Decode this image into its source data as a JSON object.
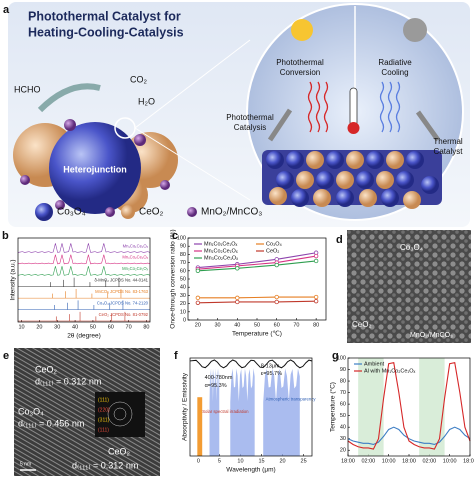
{
  "panel_a": {
    "label": "a",
    "title": [
      "Photothermal Catalyst for",
      "Heating-Cooling-Catalysis"
    ],
    "hcho": "HCHO",
    "co2": "CO₂",
    "h2o": "H₂O",
    "heterojunction": "Heterojunction",
    "photothermal_conversion": [
      "Photothermal",
      "Conversion"
    ],
    "radiative_cooling": [
      "Radiative",
      "Cooling"
    ],
    "photothermal_catalysis": [
      "Photothermal",
      "Catalysis"
    ],
    "thermal_catalyst": [
      "Thermal",
      "Catalyst"
    ],
    "legend": [
      "Co₃O₄",
      "CeO₂",
      "MnO₂/MnCO₃"
    ]
  },
  "chart_data": [
    {
      "type": "xrd",
      "panel_label": "b",
      "x_label": "2θ (degree)",
      "y_label": "Intensity (a.u.)",
      "xlim": [
        8,
        82
      ],
      "xticks": [
        10,
        20,
        30,
        40,
        50,
        60,
        70,
        80
      ],
      "traces": [
        "Mn₁Co₁Ce₁Oₓ",
        "Mn₁Co₂Ce₁Oₓ",
        "Mn₃Co₂Ce₁Oₓ",
        "δ-MnO₂ JCPDS No. 44-0141",
        "MnCO₃ JCPDS No. 83-1763",
        "Co₃O₄ JCPDS No. 74-2120",
        "CeO₂ JCPDS No. 81-0792"
      ],
      "colors": [
        "#8e44ad",
        "#d63384",
        "#2e9e4f",
        "#333333",
        "#e67e22",
        "#2f5fb3",
        "#c0392b"
      ]
    },
    {
      "type": "line",
      "panel_label": "c",
      "x_label": "Temperature (℃)",
      "y_label": "Once-through conversion ratio (%)",
      "x": [
        20,
        40,
        60,
        80
      ],
      "xlim": [
        15,
        85
      ],
      "xticks": [
        20,
        30,
        40,
        50,
        60,
        70,
        80
      ],
      "ylim": [
        0,
        100
      ],
      "yticks": [
        0,
        10,
        20,
        30,
        40,
        50,
        60,
        70,
        80,
        90,
        100
      ],
      "markers": true,
      "legend": "upper-left",
      "series": [
        {
          "name": "Mn₁Co₁Ce₁Oₓ",
          "color": "#8e44ad",
          "values": [
            64,
            68,
            74,
            82
          ]
        },
        {
          "name": "Mn₁Co₂Ce₁Oₓ",
          "color": "#d63384",
          "values": [
            62,
            66,
            70,
            78
          ]
        },
        {
          "name": "Mn₃Co₂Ce₁Oₓ",
          "color": "#2e9e4f",
          "values": [
            60,
            63,
            67,
            72
          ]
        },
        {
          "name": "Co₃O₄",
          "color": "#e67e22",
          "values": [
            27,
            27,
            28,
            28
          ]
        },
        {
          "name": "CeO₂",
          "color": "#c0392b",
          "values": [
            21,
            22,
            22,
            23
          ]
        }
      ]
    },
    {
      "type": "spectrum",
      "panel_label": "f",
      "x_label": "Wavelength (μm)",
      "y_label": "Absorptivity / Emissivity",
      "xlim": [
        -2,
        27
      ],
      "xticks": [
        0,
        5,
        10,
        15,
        20,
        25
      ],
      "annotations": [
        "400-780nm",
        "α=95.3%",
        "Solar spectral irradiation",
        "8-13μm",
        "ε=95.7%",
        "Atmospheric transparency"
      ]
    },
    {
      "type": "line",
      "panel_label": "g",
      "y_label": "Temperature (°C)",
      "x": [
        0,
        2,
        4,
        6,
        8,
        10,
        12,
        14,
        16,
        18,
        20,
        22,
        24,
        26,
        28,
        30,
        32,
        34,
        36,
        38,
        40,
        42,
        44,
        46,
        48
      ],
      "xlim": [
        0,
        48
      ],
      "xticks": [
        {
          "value": 0,
          "label": "18:00"
        },
        {
          "value": 8,
          "label": "02:00"
        },
        {
          "value": 16,
          "label": "10:00"
        },
        {
          "value": 24,
          "label": "18:00"
        },
        {
          "value": 32,
          "label": "02:00"
        },
        {
          "value": 40,
          "label": "10:00"
        },
        {
          "value": 48,
          "label": "18:00"
        }
      ],
      "ylim": [
        15,
        100
      ],
      "yticks": [
        20,
        30,
        40,
        50,
        60,
        70,
        80,
        90,
        100
      ],
      "bands": [
        [
          4,
          14
        ],
        [
          28,
          38
        ]
      ],
      "legend": "upper-left",
      "series": [
        {
          "name": "Ambient",
          "color": "#3d7ec4",
          "values": [
            30,
            28,
            27,
            26,
            26,
            25,
            27,
            32,
            38,
            40,
            38,
            33,
            30,
            28,
            27,
            26,
            26,
            25,
            27,
            32,
            38,
            40,
            38,
            33,
            30
          ]
        },
        {
          "name": "Al with Mn₁Co₂Ce₁Oₓ",
          "color": "#d62728",
          "values": [
            28,
            25,
            23,
            22,
            22,
            21,
            30,
            65,
            95,
            96,
            70,
            40,
            28,
            25,
            23,
            22,
            22,
            21,
            30,
            65,
            95,
            96,
            70,
            40,
            28
          ]
        }
      ]
    }
  ],
  "panel_d": {
    "label": "d",
    "labels": [
      "Co₃O₄",
      "CeO₂",
      "MnO₂/MnCO₃"
    ]
  },
  "panel_e": {
    "label": "e",
    "annotations": [
      "CeO₂",
      "d₍₁₁₁₎ = 0.312 nm",
      "Co₃O₄",
      "d₍₁₁₁₎ = 0.456 nm",
      "CeO₂",
      "d₍₁₁₁₎ = 0.312 nm"
    ],
    "planes": [
      "(111)",
      "(220)",
      "(311)",
      "(111)"
    ],
    "scale_bar": "5 nm"
  }
}
